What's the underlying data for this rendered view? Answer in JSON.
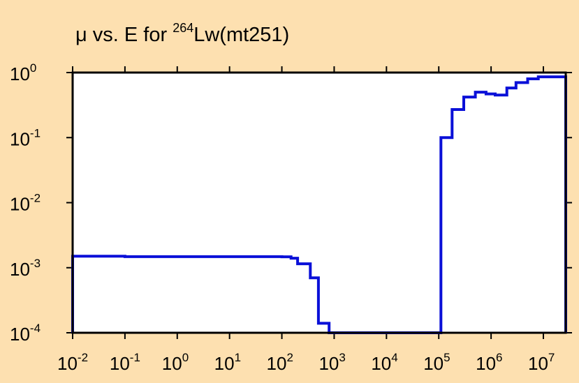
{
  "colors": {
    "background": "#fde0b0",
    "plot_area": "#ffffff",
    "series": "#0a10d8",
    "axis": "#000000"
  },
  "chart_data": {
    "type": "line",
    "step": true,
    "title": {
      "prefix": "μ vs. E for ",
      "sup": "264",
      "suffix": "Lw(mt251)"
    },
    "xlabel": "",
    "ylabel": "",
    "xscale": "log",
    "yscale": "log",
    "xlim": [
      0.01,
      20000000
    ],
    "ylim": [
      0.0001,
      1
    ],
    "grid": false,
    "legend": "none",
    "x_ticks": [
      {
        "value": 0.01,
        "base": "10",
        "exp": "-2"
      },
      {
        "value": 0.1,
        "base": "10",
        "exp": "-1"
      },
      {
        "value": 1,
        "base": "10",
        "exp": "0"
      },
      {
        "value": 10,
        "base": "10",
        "exp": "1"
      },
      {
        "value": 100,
        "base": "10",
        "exp": "2"
      },
      {
        "value": 1000,
        "base": "10",
        "exp": "3"
      },
      {
        "value": 10000,
        "base": "10",
        "exp": "4"
      },
      {
        "value": 100000,
        "base": "10",
        "exp": "5"
      },
      {
        "value": 1000000,
        "base": "10",
        "exp": "6"
      },
      {
        "value": 10000000,
        "base": "10",
        "exp": "7"
      }
    ],
    "y_ticks": [
      {
        "value": 1,
        "base": "10",
        "exp": "0"
      },
      {
        "value": 0.1,
        "base": "10",
        "exp": "-1"
      },
      {
        "value": 0.01,
        "base": "10",
        "exp": "-2"
      },
      {
        "value": 0.001,
        "base": "10",
        "exp": "-3"
      },
      {
        "value": 0.0001,
        "base": "10",
        "exp": "-4"
      }
    ],
    "series": [
      {
        "name": "",
        "points": [
          {
            "x": 0.01,
            "y": 0.0015
          },
          {
            "x": 0.1,
            "y": 0.00148
          },
          {
            "x": 100,
            "y": 0.00147
          },
          {
            "x": 150,
            "y": 0.0014
          },
          {
            "x": 200,
            "y": 0.00115
          },
          {
            "x": 350,
            "y": 0.0007
          },
          {
            "x": 500,
            "y": 0.00014
          },
          {
            "x": 800,
            "y": 0.0001
          },
          {
            "x": 110000,
            "y": 0.1
          },
          {
            "x": 180000,
            "y": 0.27
          },
          {
            "x": 300000,
            "y": 0.42
          },
          {
            "x": 500000,
            "y": 0.5
          },
          {
            "x": 800000,
            "y": 0.47
          },
          {
            "x": 1200000,
            "y": 0.45
          },
          {
            "x": 2000000,
            "y": 0.58
          },
          {
            "x": 3000000,
            "y": 0.7
          },
          {
            "x": 5000000,
            "y": 0.8
          },
          {
            "x": 8000000,
            "y": 0.86
          },
          {
            "x": 20000000,
            "y": 0.86
          }
        ]
      }
    ]
  }
}
